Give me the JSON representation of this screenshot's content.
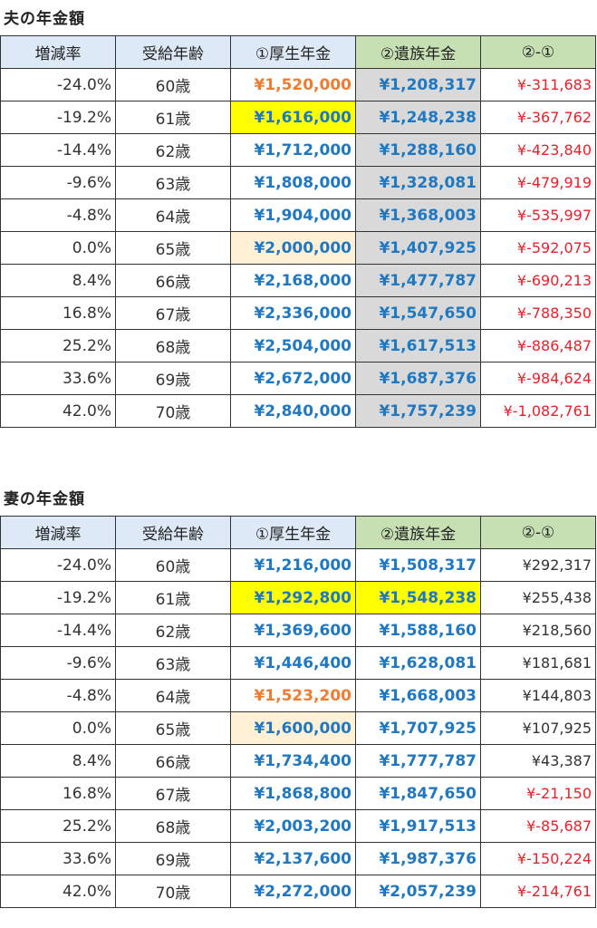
{
  "husband": {
    "title": "夫の年金額",
    "headers": [
      "増減率",
      "受給年齢",
      "①厚生年金",
      "②遺族年金",
      "②-①"
    ],
    "rows": [
      {
        "rate": "-24.0%",
        "age": "60歳",
        "kosei": "¥1,520,000",
        "izoku": "¥1,208,317",
        "diff": "¥-311,683",
        "kosei_color": "orange",
        "kosei_bg": "",
        "izoku_bg": "grey",
        "diff_color": "red"
      },
      {
        "rate": "-19.2%",
        "age": "61歳",
        "kosei": "¥1,616,000",
        "izoku": "¥1,248,238",
        "diff": "¥-367,762",
        "kosei_color": "blue",
        "kosei_bg": "yellow",
        "izoku_bg": "grey",
        "diff_color": "red"
      },
      {
        "rate": "-14.4%",
        "age": "62歳",
        "kosei": "¥1,712,000",
        "izoku": "¥1,288,160",
        "diff": "¥-423,840",
        "kosei_color": "blue",
        "kosei_bg": "",
        "izoku_bg": "grey",
        "diff_color": "red"
      },
      {
        "rate": "-9.6%",
        "age": "63歳",
        "kosei": "¥1,808,000",
        "izoku": "¥1,328,081",
        "diff": "¥-479,919",
        "kosei_color": "blue",
        "kosei_bg": "",
        "izoku_bg": "grey",
        "diff_color": "red"
      },
      {
        "rate": "-4.8%",
        "age": "64歳",
        "kosei": "¥1,904,000",
        "izoku": "¥1,368,003",
        "diff": "¥-535,997",
        "kosei_color": "blue",
        "kosei_bg": "",
        "izoku_bg": "grey",
        "diff_color": "red"
      },
      {
        "rate": "0.0%",
        "age": "65歳",
        "kosei": "¥2,000,000",
        "izoku": "¥1,407,925",
        "diff": "¥-592,075",
        "kosei_color": "blue",
        "kosei_bg": "peach",
        "izoku_bg": "grey",
        "diff_color": "red"
      },
      {
        "rate": "8.4%",
        "age": "66歳",
        "kosei": "¥2,168,000",
        "izoku": "¥1,477,787",
        "diff": "¥-690,213",
        "kosei_color": "blue",
        "kosei_bg": "",
        "izoku_bg": "grey",
        "diff_color": "red"
      },
      {
        "rate": "16.8%",
        "age": "67歳",
        "kosei": "¥2,336,000",
        "izoku": "¥1,547,650",
        "diff": "¥-788,350",
        "kosei_color": "blue",
        "kosei_bg": "",
        "izoku_bg": "grey",
        "diff_color": "red"
      },
      {
        "rate": "25.2%",
        "age": "68歳",
        "kosei": "¥2,504,000",
        "izoku": "¥1,617,513",
        "diff": "¥-886,487",
        "kosei_color": "blue",
        "kosei_bg": "",
        "izoku_bg": "grey",
        "diff_color": "red"
      },
      {
        "rate": "33.6%",
        "age": "69歳",
        "kosei": "¥2,672,000",
        "izoku": "¥1,687,376",
        "diff": "¥-984,624",
        "kosei_color": "blue",
        "kosei_bg": "",
        "izoku_bg": "grey",
        "diff_color": "red"
      },
      {
        "rate": "42.0%",
        "age": "70歳",
        "kosei": "¥2,840,000",
        "izoku": "¥1,757,239",
        "diff": "¥-1,082,761",
        "kosei_color": "blue",
        "kosei_bg": "",
        "izoku_bg": "grey",
        "diff_color": "red"
      }
    ]
  },
  "wife": {
    "title": "妻の年金額",
    "headers": [
      "増減率",
      "受給年齢",
      "①厚生年金",
      "②遺族年金",
      "②-①"
    ],
    "rows": [
      {
        "rate": "-24.0%",
        "age": "60歳",
        "kosei": "¥1,216,000",
        "izoku": "¥1,508,317",
        "diff": "¥292,317",
        "kosei_color": "blue",
        "kosei_bg": "",
        "izoku_bg": "",
        "diff_color": "dark"
      },
      {
        "rate": "-19.2%",
        "age": "61歳",
        "kosei": "¥1,292,800",
        "izoku": "¥1,548,238",
        "diff": "¥255,438",
        "kosei_color": "blue",
        "kosei_bg": "yellow",
        "izoku_bg": "yellow",
        "diff_color": "dark"
      },
      {
        "rate": "-14.4%",
        "age": "62歳",
        "kosei": "¥1,369,600",
        "izoku": "¥1,588,160",
        "diff": "¥218,560",
        "kosei_color": "blue",
        "kosei_bg": "",
        "izoku_bg": "",
        "diff_color": "dark"
      },
      {
        "rate": "-9.6%",
        "age": "63歳",
        "kosei": "¥1,446,400",
        "izoku": "¥1,628,081",
        "diff": "¥181,681",
        "kosei_color": "blue",
        "kosei_bg": "",
        "izoku_bg": "",
        "diff_color": "dark"
      },
      {
        "rate": "-4.8%",
        "age": "64歳",
        "kosei": "¥1,523,200",
        "izoku": "¥1,668,003",
        "diff": "¥144,803",
        "kosei_color": "orange",
        "kosei_bg": "",
        "izoku_bg": "",
        "diff_color": "dark"
      },
      {
        "rate": "0.0%",
        "age": "65歳",
        "kosei": "¥1,600,000",
        "izoku": "¥1,707,925",
        "diff": "¥107,925",
        "kosei_color": "blue",
        "kosei_bg": "peach",
        "izoku_bg": "",
        "diff_color": "dark"
      },
      {
        "rate": "8.4%",
        "age": "66歳",
        "kosei": "¥1,734,400",
        "izoku": "¥1,777,787",
        "diff": "¥43,387",
        "kosei_color": "blue",
        "kosei_bg": "",
        "izoku_bg": "",
        "diff_color": "dark"
      },
      {
        "rate": "16.8%",
        "age": "67歳",
        "kosei": "¥1,868,800",
        "izoku": "¥1,847,650",
        "diff": "¥-21,150",
        "kosei_color": "blue",
        "kosei_bg": "",
        "izoku_bg": "",
        "diff_color": "red"
      },
      {
        "rate": "25.2%",
        "age": "68歳",
        "kosei": "¥2,003,200",
        "izoku": "¥1,917,513",
        "diff": "¥-85,687",
        "kosei_color": "blue",
        "kosei_bg": "",
        "izoku_bg": "",
        "diff_color": "red"
      },
      {
        "rate": "33.6%",
        "age": "69歳",
        "kosei": "¥2,137,600",
        "izoku": "¥1,987,376",
        "diff": "¥-150,224",
        "kosei_color": "blue",
        "kosei_bg": "",
        "izoku_bg": "",
        "diff_color": "red"
      },
      {
        "rate": "42.0%",
        "age": "70歳",
        "kosei": "¥2,272,000",
        "izoku": "¥2,057,239",
        "diff": "¥-214,761",
        "kosei_color": "blue",
        "kosei_bg": "",
        "izoku_bg": "",
        "diff_color": "red"
      }
    ]
  }
}
